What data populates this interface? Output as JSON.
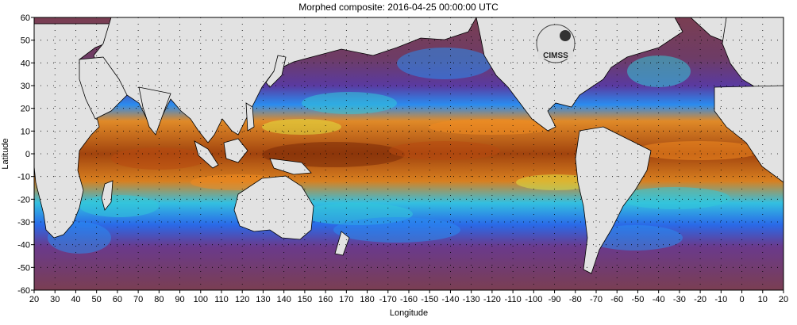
{
  "title": "Morphed composite: 2016-04-25 00:00:00 UTC",
  "xlabel": "Longitude",
  "ylabel": "Latitude",
  "x_ticks": [
    "20",
    "30",
    "40",
    "50",
    "60",
    "70",
    "80",
    "90",
    "100",
    "110",
    "120",
    "130",
    "140",
    "150",
    "160",
    "170",
    "180",
    "-170",
    "-160",
    "-150",
    "-140",
    "-130",
    "-120",
    "-110",
    "-100",
    "-90",
    "-80",
    "-70",
    "-60",
    "-50",
    "-40",
    "-30",
    "-20",
    "-10",
    "0",
    "10",
    "20"
  ],
  "y_ticks": [
    "60",
    "50",
    "40",
    "30",
    "20",
    "10",
    "0",
    "-10",
    "-20",
    "-30",
    "-40",
    "-50",
    "-60"
  ],
  "logo_text": "CIMSS",
  "palette": {
    "dry": "#7a3e52",
    "dry_purple": "#6a3a7a",
    "low": "#3a3ad0",
    "low_mid": "#2a8cf0",
    "mid": "#33c8d8",
    "mid_green": "#6ad88a",
    "high_yellow": "#e0e040",
    "high_orange": "#f08a20",
    "very_high": "#b84a10",
    "max": "#7a2a08",
    "land": "#e2e2e2"
  }
}
